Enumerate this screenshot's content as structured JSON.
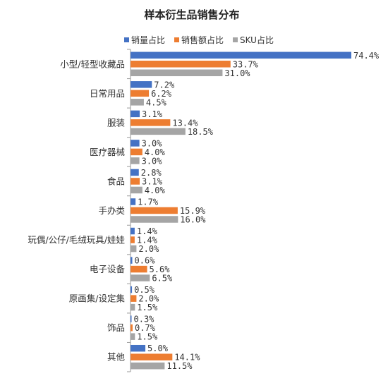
{
  "chart_data": {
    "type": "bar",
    "orientation": "horizontal",
    "title": "样本衍生品销售分布",
    "legend_position": "top",
    "categories": [
      "小型/轻型收藏品",
      "日常用品",
      "服装",
      "医疗器械",
      "食品",
      "手办类",
      "玩偶/公仔/毛绒玩具/娃娃",
      "电子设备",
      "原画集/设定集",
      "饰品",
      "其他"
    ],
    "series": [
      {
        "name": "销量占比",
        "color": "#4472C4",
        "values": [
          74.4,
          7.2,
          3.1,
          3.0,
          2.8,
          1.7,
          1.4,
          0.6,
          0.5,
          0.3,
          5.0
        ],
        "labels": [
          "74.4%",
          "7.2%",
          "3.1%",
          "3.0%",
          "2.8%",
          "1.7%",
          "1.4%",
          "0.6%",
          "0.5%",
          "0.3%",
          "5.0%"
        ]
      },
      {
        "name": "销售额占比",
        "color": "#ED7D31",
        "values": [
          33.7,
          6.2,
          13.4,
          4.0,
          3.1,
          15.9,
          1.4,
          5.6,
          2.0,
          0.7,
          14.1
        ],
        "labels": [
          "33.7%",
          "6.2%",
          "13.4%",
          "4.0%",
          "3.1%",
          "15.9%",
          "1.4%",
          "5.6%",
          "2.0%",
          "0.7%",
          "14.1%"
        ]
      },
      {
        "name": "SKU占比",
        "color": "#A5A5A5",
        "values": [
          31.0,
          4.5,
          18.5,
          3.0,
          4.0,
          16.0,
          2.0,
          6.5,
          1.5,
          1.5,
          11.5
        ],
        "labels": [
          "31.0%",
          "4.5%",
          "18.5%",
          "3.0%",
          "4.0%",
          "16.0%",
          "2.0%",
          "6.5%",
          "1.5%",
          "1.5%",
          "11.5%"
        ]
      }
    ],
    "xlim": [
      0,
      80
    ],
    "grid": false
  }
}
